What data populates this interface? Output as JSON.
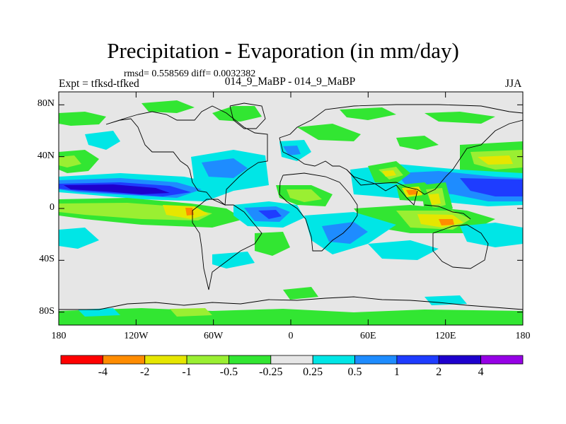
{
  "header": {
    "title": "Precipitation - Evaporation (in mm/day)",
    "stats": "rmsd= 0.558569 diff= 0.0032382",
    "left_label": "Expt = tfksd-tfked",
    "center_label": "014_9_MaBP - 014_9_MaBP",
    "right_label": "JJA"
  },
  "axes": {
    "y_ticks": [
      {
        "label": "80N",
        "value": 80
      },
      {
        "label": "40N",
        "value": 40
      },
      {
        "label": "0",
        "value": 0
      },
      {
        "label": "40S",
        "value": -40
      },
      {
        "label": "80S",
        "value": -80
      }
    ],
    "x_ticks": [
      {
        "label": "180",
        "value": -180
      },
      {
        "label": "120W",
        "value": -120
      },
      {
        "label": "60W",
        "value": -60
      },
      {
        "label": "0",
        "value": 0
      },
      {
        "label": "60E",
        "value": 60
      },
      {
        "label": "120E",
        "value": 120
      },
      {
        "label": "180",
        "value": 180
      }
    ],
    "lon_range": [
      -180,
      180
    ],
    "lat_range": [
      -90,
      90
    ]
  },
  "colorbar": {
    "colors": [
      "#ff0000",
      "#ff8c00",
      "#e6e600",
      "#9aef32",
      "#32e632",
      "#e6e6e6",
      "#00e6e6",
      "#1e8cff",
      "#1e3cff",
      "#1e00cd",
      "#9600e6"
    ],
    "labels": [
      "-4",
      "-2",
      "-1",
      "-0.5",
      "-0.25",
      "0.25",
      "0.5",
      "1",
      "2",
      "4"
    ]
  },
  "map": {
    "background_color": "#e6e6e6"
  }
}
